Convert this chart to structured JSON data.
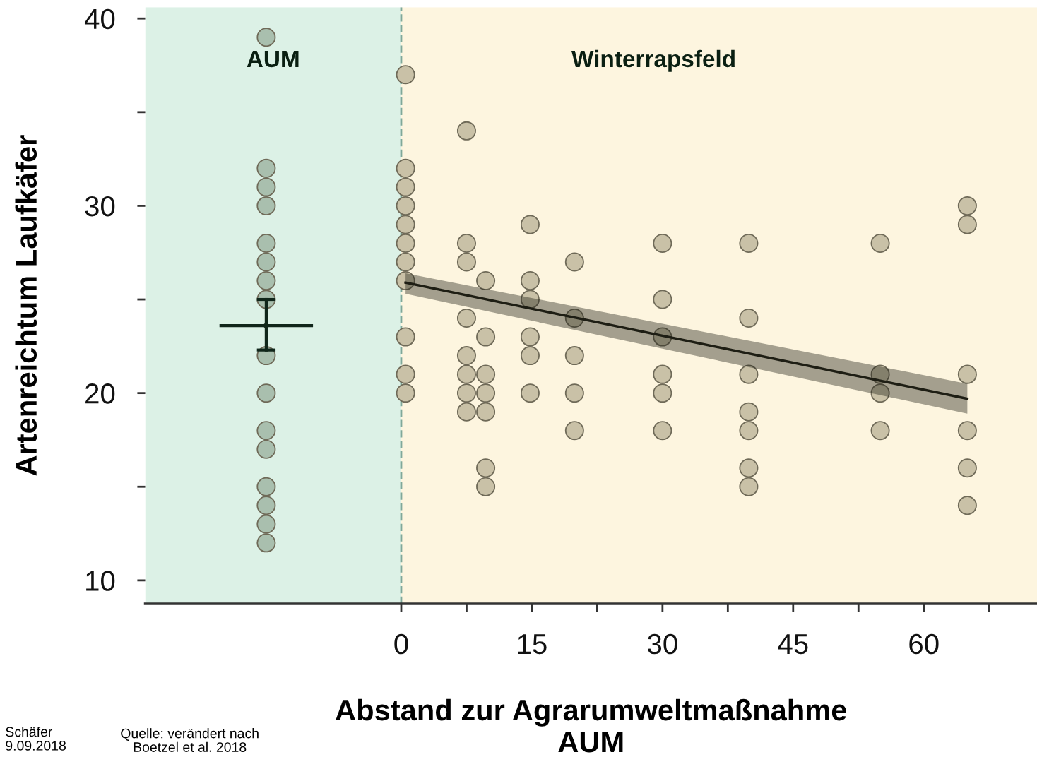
{
  "chart_data": {
    "type": "scatter",
    "xlabel": "Abstand zur Agrarumweltmaßnahme\nAUM",
    "ylabel": "Artenreichtum Laufkäfer",
    "xlim": [
      -29.4,
      73
    ],
    "ylim": [
      8.75,
      40.6
    ],
    "xticks": [
      0,
      {
        "value": 7.5,
        "label": null
      },
      15,
      {
        "value": 22.5,
        "label": null
      },
      30,
      {
        "value": 37.5,
        "label": null
      },
      45,
      {
        "value": 52.5,
        "label": null
      },
      60,
      {
        "value": 67.5,
        "label": null
      }
    ],
    "yticks": [
      10,
      {
        "value": 15,
        "label": null
      },
      20,
      {
        "value": 25,
        "label": null
      },
      30,
      {
        "value": 35,
        "label": null
      },
      40
    ],
    "grid": false,
    "legend": false,
    "marker": "circle",
    "bands": [
      {
        "axis": "x",
        "from": -29.4,
        "to": 0,
        "label": "AUM",
        "color": "#dcf1e6"
      },
      {
        "axis": "x",
        "from": 0,
        "to": 73,
        "label": "Winterrapsfeld",
        "color": "#fdf5df"
      }
    ],
    "ref_lines": [
      {
        "axis": "x",
        "value": 0,
        "color": "#7fa89a",
        "line_style": "dashed"
      }
    ],
    "series": [
      {
        "color": "#a9bfae",
        "x": [
          -15.5,
          -15.5,
          -15.5,
          -15.5,
          -15.5,
          -15.5,
          -15.5,
          -15.5,
          -15.5,
          -15.5,
          -15.5,
          -15.5,
          -15.5,
          -15.5,
          -15.5,
          -15.5
        ],
        "values": [
          39,
          32,
          31,
          30,
          28,
          27,
          26,
          25,
          22,
          20,
          18,
          17,
          15,
          14,
          13,
          12
        ]
      },
      {
        "color": "#c9c1a7",
        "x": [
          0.5,
          0.5,
          0.5,
          0.5,
          0.5,
          0.5,
          0.5,
          0.5,
          0.5,
          0.5,
          0.5,
          7.5,
          7.5,
          7.5,
          7.5,
          7.5,
          7.5,
          7.5,
          7.5,
          9.7,
          9.7,
          9.7,
          9.7,
          9.7,
          9.7,
          9.7,
          14.8,
          14.8,
          14.8,
          14.8,
          14.8,
          14.8,
          19.9,
          19.9,
          19.9,
          19.9,
          19.9,
          30,
          30,
          30,
          30,
          30,
          30,
          39.9,
          39.9,
          39.9,
          39.9,
          39.9,
          39.9,
          39.9,
          55,
          55,
          55,
          55,
          65,
          65,
          65,
          65,
          65,
          65
        ],
        "values": [
          37,
          32,
          31,
          30,
          29,
          28,
          27,
          26,
          23,
          21,
          20,
          34,
          28,
          27,
          24,
          22,
          21,
          20,
          19,
          26,
          23,
          21,
          20,
          19,
          16,
          15,
          29,
          26,
          25,
          23,
          22,
          20,
          27,
          24,
          22,
          20,
          18,
          28,
          25,
          23,
          21,
          20,
          18,
          28,
          24,
          21,
          19,
          18,
          16,
          15,
          28,
          21,
          20,
          18,
          30,
          29,
          21,
          18,
          16,
          14
        ]
      },
      {
        "type": "line",
        "marker": "none",
        "color": "#1e1e14",
        "x": [
          0.5,
          65
        ],
        "values": [
          25.9,
          19.7
        ],
        "lower": [
          25.3,
          18.9
        ],
        "upper": [
          26.4,
          20.5
        ]
      },
      {
        "type": "scatter",
        "marker": "none",
        "color": "#10261a",
        "x": [
          -15.5
        ],
        "values": [
          23.6
        ],
        "errors": [
          [
            22.3,
            25.0
          ]
        ],
        "xerrors": [
          5.2
        ]
      }
    ],
    "annotations": [
      "Schäfer\n9.09.2018",
      "Quelle: verändert nach\nBoetzel et al. 2018"
    ]
  }
}
